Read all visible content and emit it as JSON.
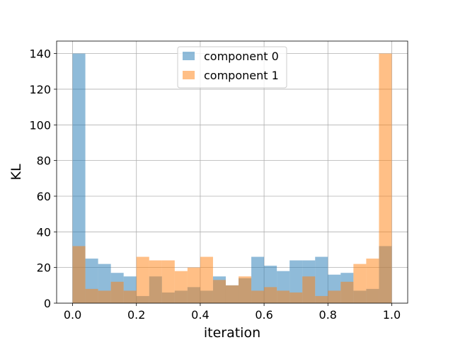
{
  "chart_data": {
    "type": "bar",
    "subtype": "overlaid-histogram",
    "title": "",
    "xlabel": "iteration",
    "ylabel": "KL",
    "xlim": [
      -0.05,
      1.05
    ],
    "ylim": [
      0,
      147
    ],
    "xticks": [
      "0.0",
      "0.2",
      "0.4",
      "0.6",
      "0.8",
      "1.0"
    ],
    "yticks": [
      "0",
      "20",
      "40",
      "60",
      "80",
      "100",
      "120",
      "140"
    ],
    "grid": true,
    "legend_position": "top-center",
    "bin_edges": [
      0.0,
      0.04,
      0.08,
      0.12,
      0.16,
      0.2,
      0.24,
      0.28,
      0.32,
      0.36,
      0.4,
      0.44,
      0.48,
      0.52,
      0.56,
      0.6,
      0.64,
      0.68,
      0.72,
      0.76,
      0.8,
      0.84,
      0.88,
      0.92,
      0.96,
      1.0
    ],
    "series": [
      {
        "name": "component 0",
        "color": "#1f77b4",
        "alpha": 0.5,
        "values": [
          140,
          25,
          22,
          17,
          15,
          4,
          15,
          6,
          7,
          9,
          7,
          15,
          10,
          14,
          26,
          21,
          18,
          24,
          24,
          26,
          16,
          17,
          7,
          8,
          32
        ]
      },
      {
        "name": "component 1",
        "color": "#ff7f0e",
        "alpha": 0.5,
        "values": [
          32,
          8,
          7,
          12,
          7,
          26,
          24,
          24,
          18,
          20,
          26,
          13,
          10,
          15,
          7,
          9,
          7,
          6,
          15,
          4,
          7,
          12,
          22,
          25,
          140
        ]
      }
    ]
  }
}
